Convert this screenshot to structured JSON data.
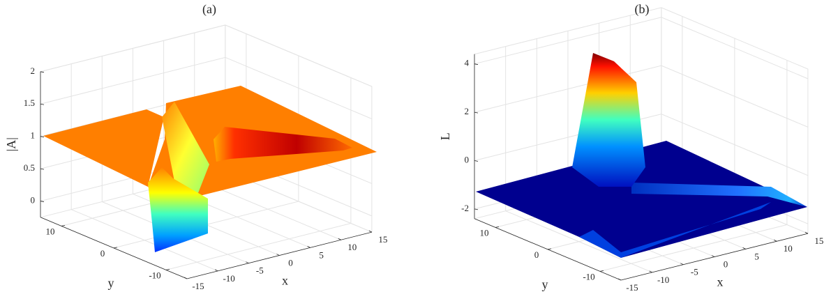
{
  "chart_data": [
    {
      "type": "surface",
      "title": "(a)",
      "xlabel": "x",
      "ylabel": "y",
      "zlabel": "|A|",
      "xlim": [
        -15,
        15
      ],
      "ylim": [
        -14,
        14
      ],
      "zlim": [
        -0.25,
        2
      ],
      "xticks": [
        -15,
        -10,
        -5,
        0,
        5,
        10,
        15
      ],
      "yticks": [
        -10,
        0,
        10
      ],
      "zticks": [
        0,
        0.5,
        1,
        1.5,
        2
      ],
      "grid": true
    },
    {
      "type": "surface",
      "title": "(b)",
      "xlabel": "x",
      "ylabel": "y",
      "zlabel": "L",
      "xlim": [
        -15,
        15
      ],
      "ylim": [
        -14,
        14
      ],
      "zlim": [
        -2.4,
        4.4
      ],
      "xticks": [
        -15,
        -10,
        -5,
        0,
        5,
        10,
        15
      ],
      "yticks": [
        -10,
        0,
        10
      ],
      "zticks": [
        -2,
        0,
        2,
        4
      ],
      "grid": true
    }
  ]
}
